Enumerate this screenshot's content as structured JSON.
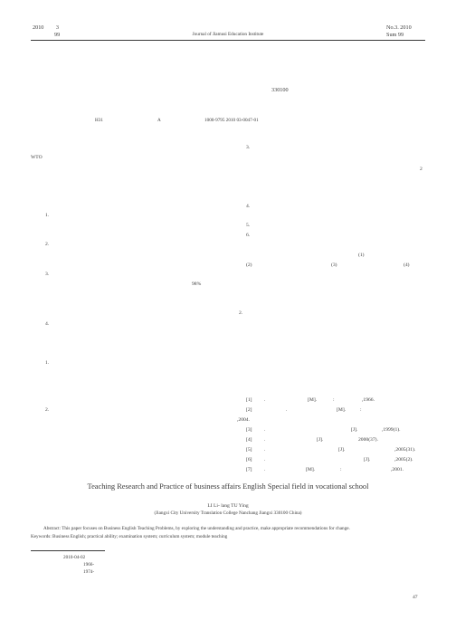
{
  "header": {
    "left_line1_a": "2010",
    "left_line1_b": "3",
    "left_line2": "99",
    "center": "Journal of Jiamusi Education Institute",
    "right_line1": "No.3. 2010",
    "right_line2": "Sum 99"
  },
  "front_matter": {
    "postcode": "330100",
    "classification": "H31",
    "doc_code": "A",
    "article_id": "1000-9795   2010   03-0047-01"
  },
  "left_column": [
    "WTO",
    "1.",
    "2.",
    "3.",
    "98%",
    "4.",
    "1.",
    "2."
  ],
  "right_column": [
    "3.",
    "2",
    "4.",
    "5.",
    "6.",
    "(1)",
    "(2)",
    "(3)",
    "(4)",
    "2."
  ],
  "references": [
    {
      "num": "[1]",
      "a": ".",
      "b": "[M].",
      "c": ":",
      "d": ",1966."
    },
    {
      "num": "[2]",
      "a": ".",
      "b": "[M].",
      "c": ":",
      "d": ""
    },
    {
      "num": "",
      "a": ",2004.",
      "b": "",
      "c": "",
      "d": ""
    },
    {
      "num": "[3]",
      "a": ".",
      "b": "[J].",
      "c": "",
      "d": ",1999(1)."
    },
    {
      "num": "[4]",
      "a": ".",
      "b": "[J].",
      "c": "",
      "d": "2000(37)."
    },
    {
      "num": "[5]",
      "a": ".",
      "b": "[J].",
      "c": "",
      "d": ",2005(31)."
    },
    {
      "num": "[6]",
      "a": ".",
      "b": "[J].",
      "c": "",
      "d": ",2005(2)."
    },
    {
      "num": "[7]",
      "a": ".",
      "b": "[M].",
      "c": ":",
      "d": ",2001."
    }
  ],
  "english": {
    "title": "Teaching Research and Practice of business affairs English Special field in vocational school",
    "authors": "LI Li- lang    TU Ying",
    "affiliation": "(Jiangxi City University Translation College   Nanchang Jiangxi   330100   China)",
    "abstract": "Abstract: This paper focuses on Business English Teaching Problems, by exploring the understanding and practice, make appropriate recommendations for change.",
    "keywords": "Keywords: Business English; practical ability; examination system; curriculum system; module teaching"
  },
  "footnote": {
    "received": "2010-04-02",
    "author1": "1966-",
    "author2": "1974-"
  },
  "page_number": "47"
}
